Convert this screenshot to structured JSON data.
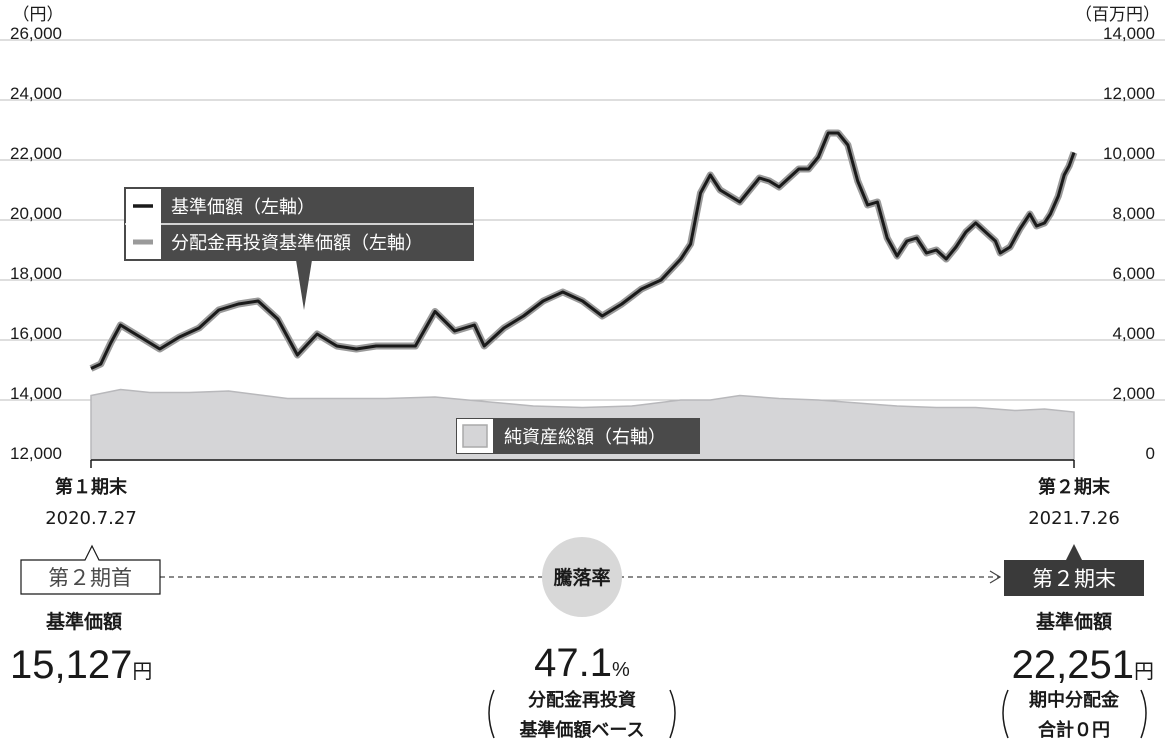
{
  "chart_data": {
    "type": "line",
    "left_axis": {
      "unit": "（円）",
      "range": [
        12000,
        26000
      ],
      "ticks": [
        "26,000",
        "24,000",
        "22,000",
        "20,000",
        "18,000",
        "16,000",
        "14,000",
        "12,000"
      ]
    },
    "right_axis": {
      "unit": "（百万円）",
      "range": [
        0,
        14000
      ],
      "ticks": [
        "14,000",
        "12,000",
        "10,000",
        "8,000",
        "6,000",
        "4,000",
        "2,000",
        "0"
      ]
    },
    "x_axis": {
      "start_label": "第１期末",
      "start_date": "2020.7.27",
      "end_label": "第２期末",
      "end_date": "2021.7.26"
    },
    "legend": {
      "nav": "基準価額（左軸）",
      "reinvest": "分配金再投資基準価額（左軸）",
      "assets": "純資産総額（右軸）"
    },
    "series": [
      {
        "name": "基準価額（左軸）",
        "axis": "left",
        "color": "#1a1a1a",
        "points": [
          [
            0,
            15050
          ],
          [
            0.01,
            15200
          ],
          [
            0.02,
            15900
          ],
          [
            0.03,
            16500
          ],
          [
            0.05,
            16100
          ],
          [
            0.07,
            15700
          ],
          [
            0.09,
            16100
          ],
          [
            0.11,
            16400
          ],
          [
            0.13,
            17000
          ],
          [
            0.15,
            17200
          ],
          [
            0.17,
            17300
          ],
          [
            0.19,
            16700
          ],
          [
            0.21,
            15500
          ],
          [
            0.23,
            16200
          ],
          [
            0.25,
            15800
          ],
          [
            0.27,
            15700
          ],
          [
            0.29,
            15800
          ],
          [
            0.31,
            15800
          ],
          [
            0.33,
            15800
          ],
          [
            0.35,
            16950
          ],
          [
            0.37,
            16300
          ],
          [
            0.39,
            16500
          ],
          [
            0.4,
            15800
          ],
          [
            0.42,
            16400
          ],
          [
            0.44,
            16800
          ],
          [
            0.46,
            17300
          ],
          [
            0.48,
            17600
          ],
          [
            0.5,
            17300
          ],
          [
            0.52,
            16800
          ],
          [
            0.54,
            17200
          ],
          [
            0.56,
            17700
          ],
          [
            0.58,
            18000
          ],
          [
            0.6,
            18700
          ],
          [
            0.61,
            19200
          ],
          [
            0.62,
            20900
          ],
          [
            0.63,
            21500
          ],
          [
            0.64,
            21000
          ],
          [
            0.66,
            20600
          ],
          [
            0.68,
            21400
          ],
          [
            0.69,
            21300
          ],
          [
            0.7,
            21100
          ],
          [
            0.72,
            21700
          ],
          [
            0.73,
            21700
          ],
          [
            0.74,
            22100
          ],
          [
            0.75,
            22900
          ],
          [
            0.76,
            22900
          ],
          [
            0.77,
            22500
          ],
          [
            0.78,
            21300
          ],
          [
            0.79,
            20500
          ],
          [
            0.8,
            20600
          ],
          [
            0.81,
            19400
          ],
          [
            0.82,
            18800
          ],
          [
            0.83,
            19300
          ],
          [
            0.84,
            19400
          ],
          [
            0.85,
            18900
          ],
          [
            0.86,
            19000
          ],
          [
            0.87,
            18700
          ],
          [
            0.88,
            19100
          ],
          [
            0.89,
            19600
          ],
          [
            0.9,
            19900
          ],
          [
            0.91,
            19600
          ],
          [
            0.92,
            19300
          ],
          [
            0.925,
            18900
          ],
          [
            0.935,
            19100
          ],
          [
            0.945,
            19700
          ],
          [
            0.955,
            20200
          ],
          [
            0.962,
            19800
          ],
          [
            0.97,
            19900
          ],
          [
            0.976,
            20200
          ],
          [
            0.984,
            20800
          ],
          [
            0.99,
            21500
          ],
          [
            0.995,
            21800
          ],
          [
            1.0,
            22251
          ]
        ]
      },
      {
        "name": "分配金再投資基準価額（左軸）",
        "axis": "left",
        "color": "#9a9a9a",
        "points": [
          [
            0,
            15050
          ],
          [
            0.01,
            15200
          ],
          [
            0.02,
            15900
          ],
          [
            0.03,
            16500
          ],
          [
            0.05,
            16100
          ],
          [
            0.07,
            15700
          ],
          [
            0.09,
            16100
          ],
          [
            0.11,
            16400
          ],
          [
            0.13,
            17000
          ],
          [
            0.15,
            17200
          ],
          [
            0.17,
            17300
          ],
          [
            0.19,
            16700
          ],
          [
            0.21,
            15500
          ],
          [
            0.23,
            16200
          ],
          [
            0.25,
            15800
          ],
          [
            0.27,
            15700
          ],
          [
            0.29,
            15800
          ],
          [
            0.31,
            15800
          ],
          [
            0.33,
            15800
          ],
          [
            0.35,
            16950
          ],
          [
            0.37,
            16300
          ],
          [
            0.39,
            16500
          ],
          [
            0.4,
            15800
          ],
          [
            0.42,
            16400
          ],
          [
            0.44,
            16800
          ],
          [
            0.46,
            17300
          ],
          [
            0.48,
            17600
          ],
          [
            0.5,
            17300
          ],
          [
            0.52,
            16800
          ],
          [
            0.54,
            17200
          ],
          [
            0.56,
            17700
          ],
          [
            0.58,
            18000
          ],
          [
            0.6,
            18700
          ],
          [
            0.61,
            19200
          ],
          [
            0.62,
            20900
          ],
          [
            0.63,
            21500
          ],
          [
            0.64,
            21000
          ],
          [
            0.66,
            20600
          ],
          [
            0.68,
            21400
          ],
          [
            0.69,
            21300
          ],
          [
            0.7,
            21100
          ],
          [
            0.72,
            21700
          ],
          [
            0.73,
            21700
          ],
          [
            0.74,
            22100
          ],
          [
            0.75,
            22900
          ],
          [
            0.76,
            22900
          ],
          [
            0.77,
            22500
          ],
          [
            0.78,
            21300
          ],
          [
            0.79,
            20500
          ],
          [
            0.8,
            20600
          ],
          [
            0.81,
            19400
          ],
          [
            0.82,
            18800
          ],
          [
            0.83,
            19300
          ],
          [
            0.84,
            19400
          ],
          [
            0.85,
            18900
          ],
          [
            0.86,
            19000
          ],
          [
            0.87,
            18700
          ],
          [
            0.88,
            19100
          ],
          [
            0.89,
            19600
          ],
          [
            0.9,
            19900
          ],
          [
            0.91,
            19600
          ],
          [
            0.92,
            19300
          ],
          [
            0.925,
            18900
          ],
          [
            0.935,
            19100
          ],
          [
            0.945,
            19700
          ],
          [
            0.955,
            20200
          ],
          [
            0.962,
            19800
          ],
          [
            0.97,
            19900
          ],
          [
            0.976,
            20200
          ],
          [
            0.984,
            20800
          ],
          [
            0.99,
            21500
          ],
          [
            0.995,
            21800
          ],
          [
            1.0,
            22251
          ]
        ]
      },
      {
        "name": "純資産総額（右軸）",
        "axis": "right",
        "color": "#d5d5d7",
        "type": "area",
        "points": [
          [
            0,
            2150
          ],
          [
            0.03,
            2350
          ],
          [
            0.06,
            2250
          ],
          [
            0.1,
            2250
          ],
          [
            0.14,
            2300
          ],
          [
            0.2,
            2050
          ],
          [
            0.3,
            2050
          ],
          [
            0.35,
            2100
          ],
          [
            0.4,
            1950
          ],
          [
            0.45,
            1800
          ],
          [
            0.5,
            1750
          ],
          [
            0.55,
            1800
          ],
          [
            0.6,
            2000
          ],
          [
            0.63,
            2000
          ],
          [
            0.66,
            2150
          ],
          [
            0.7,
            2050
          ],
          [
            0.74,
            2000
          ],
          [
            0.78,
            1900
          ],
          [
            0.82,
            1800
          ],
          [
            0.86,
            1750
          ],
          [
            0.9,
            1750
          ],
          [
            0.94,
            1650
          ],
          [
            0.97,
            1700
          ],
          [
            1.0,
            1600
          ]
        ]
      }
    ]
  },
  "summary": {
    "start_box": "第２期首",
    "start_label": "基準価額",
    "start_value": "15,127",
    "start_unit": "円",
    "center_circle": "騰落率",
    "center_value": "47.1",
    "center_unit": "%",
    "center_note_line1": "分配金再投資",
    "center_note_line2": "基準価額ベース",
    "end_box": "第２期末",
    "end_label": "基準価額",
    "end_value": "22,251",
    "end_unit": "円",
    "end_note_line1": "期中分配金",
    "end_note_line2": "合計０円"
  }
}
